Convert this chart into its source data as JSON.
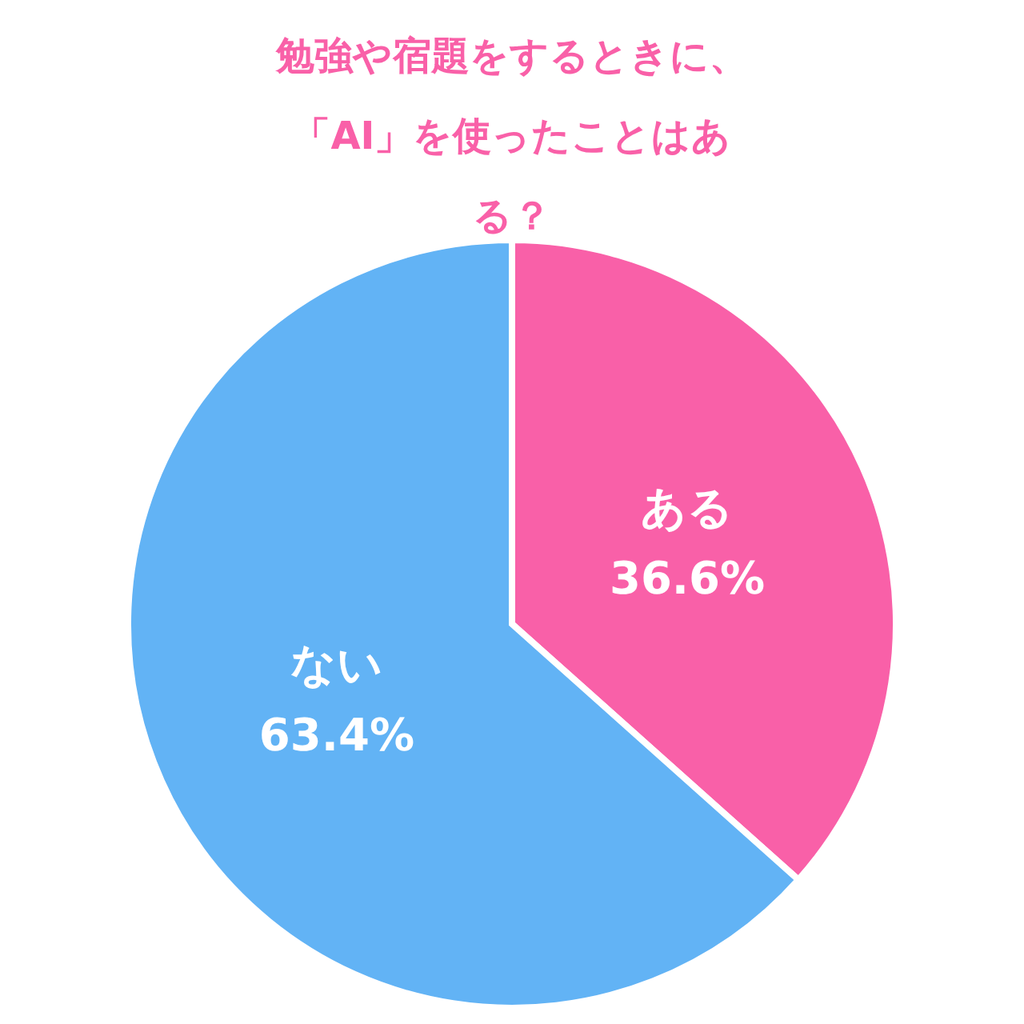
{
  "chart_data": {
    "type": "pie",
    "title": "勉強や宿題をするときに、「AI」を使ったことはある？",
    "categories": [
      "ある",
      "ない"
    ],
    "values": [
      36.6,
      63.4
    ],
    "colors": [
      "#f960a8",
      "#62b3f5"
    ],
    "value_labels": [
      "36.6%",
      "63.4%"
    ],
    "legend": false
  }
}
